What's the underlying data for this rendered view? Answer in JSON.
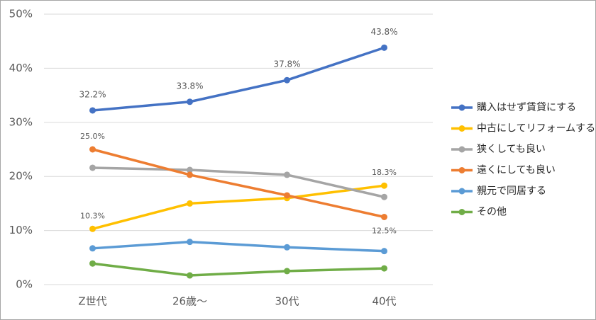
{
  "chart_data": {
    "type": "line",
    "categories": [
      "Z世代",
      "26歳～",
      "30代",
      "40代"
    ],
    "ylim": [
      0,
      50
    ],
    "yticks": [
      {
        "value": 0,
        "label": "0%"
      },
      {
        "value": 10,
        "label": "10%"
      },
      {
        "value": 20,
        "label": "20%"
      },
      {
        "value": 30,
        "label": "30%"
      },
      {
        "value": 40,
        "label": "40%"
      },
      {
        "value": 50,
        "label": "50%"
      }
    ],
    "grid": true,
    "legend": "right",
    "series": [
      {
        "name": "購入はせず賃貸にする",
        "color": "#4472c4",
        "values": [
          32.2,
          33.8,
          37.8,
          43.8
        ],
        "value_labels": [
          "32.2%",
          "33.8%",
          "37.8%",
          "43.8%"
        ]
      },
      {
        "name": "中古にしてリフォームする",
        "color": "#ffc000",
        "values": [
          10.3,
          15.0,
          16.0,
          18.3
        ],
        "value_labels": [
          "10.3%",
          null,
          null,
          "18.3%"
        ]
      },
      {
        "name": "狭くしても良い",
        "color": "#a5a5a5",
        "values": [
          21.6,
          21.2,
          20.3,
          16.2
        ]
      },
      {
        "name": "遠くにしても良い",
        "color": "#ed7d31",
        "values": [
          25.0,
          20.3,
          16.5,
          12.5
        ],
        "value_labels": [
          "25.0%",
          null,
          null,
          "12.5%"
        ]
      },
      {
        "name": "親元で同居する",
        "color": "#5b9bd5",
        "values": [
          6.7,
          7.9,
          6.9,
          6.2
        ]
      },
      {
        "name": "その他",
        "color": "#70ad47",
        "values": [
          3.9,
          1.7,
          2.5,
          3.0
        ]
      }
    ]
  }
}
